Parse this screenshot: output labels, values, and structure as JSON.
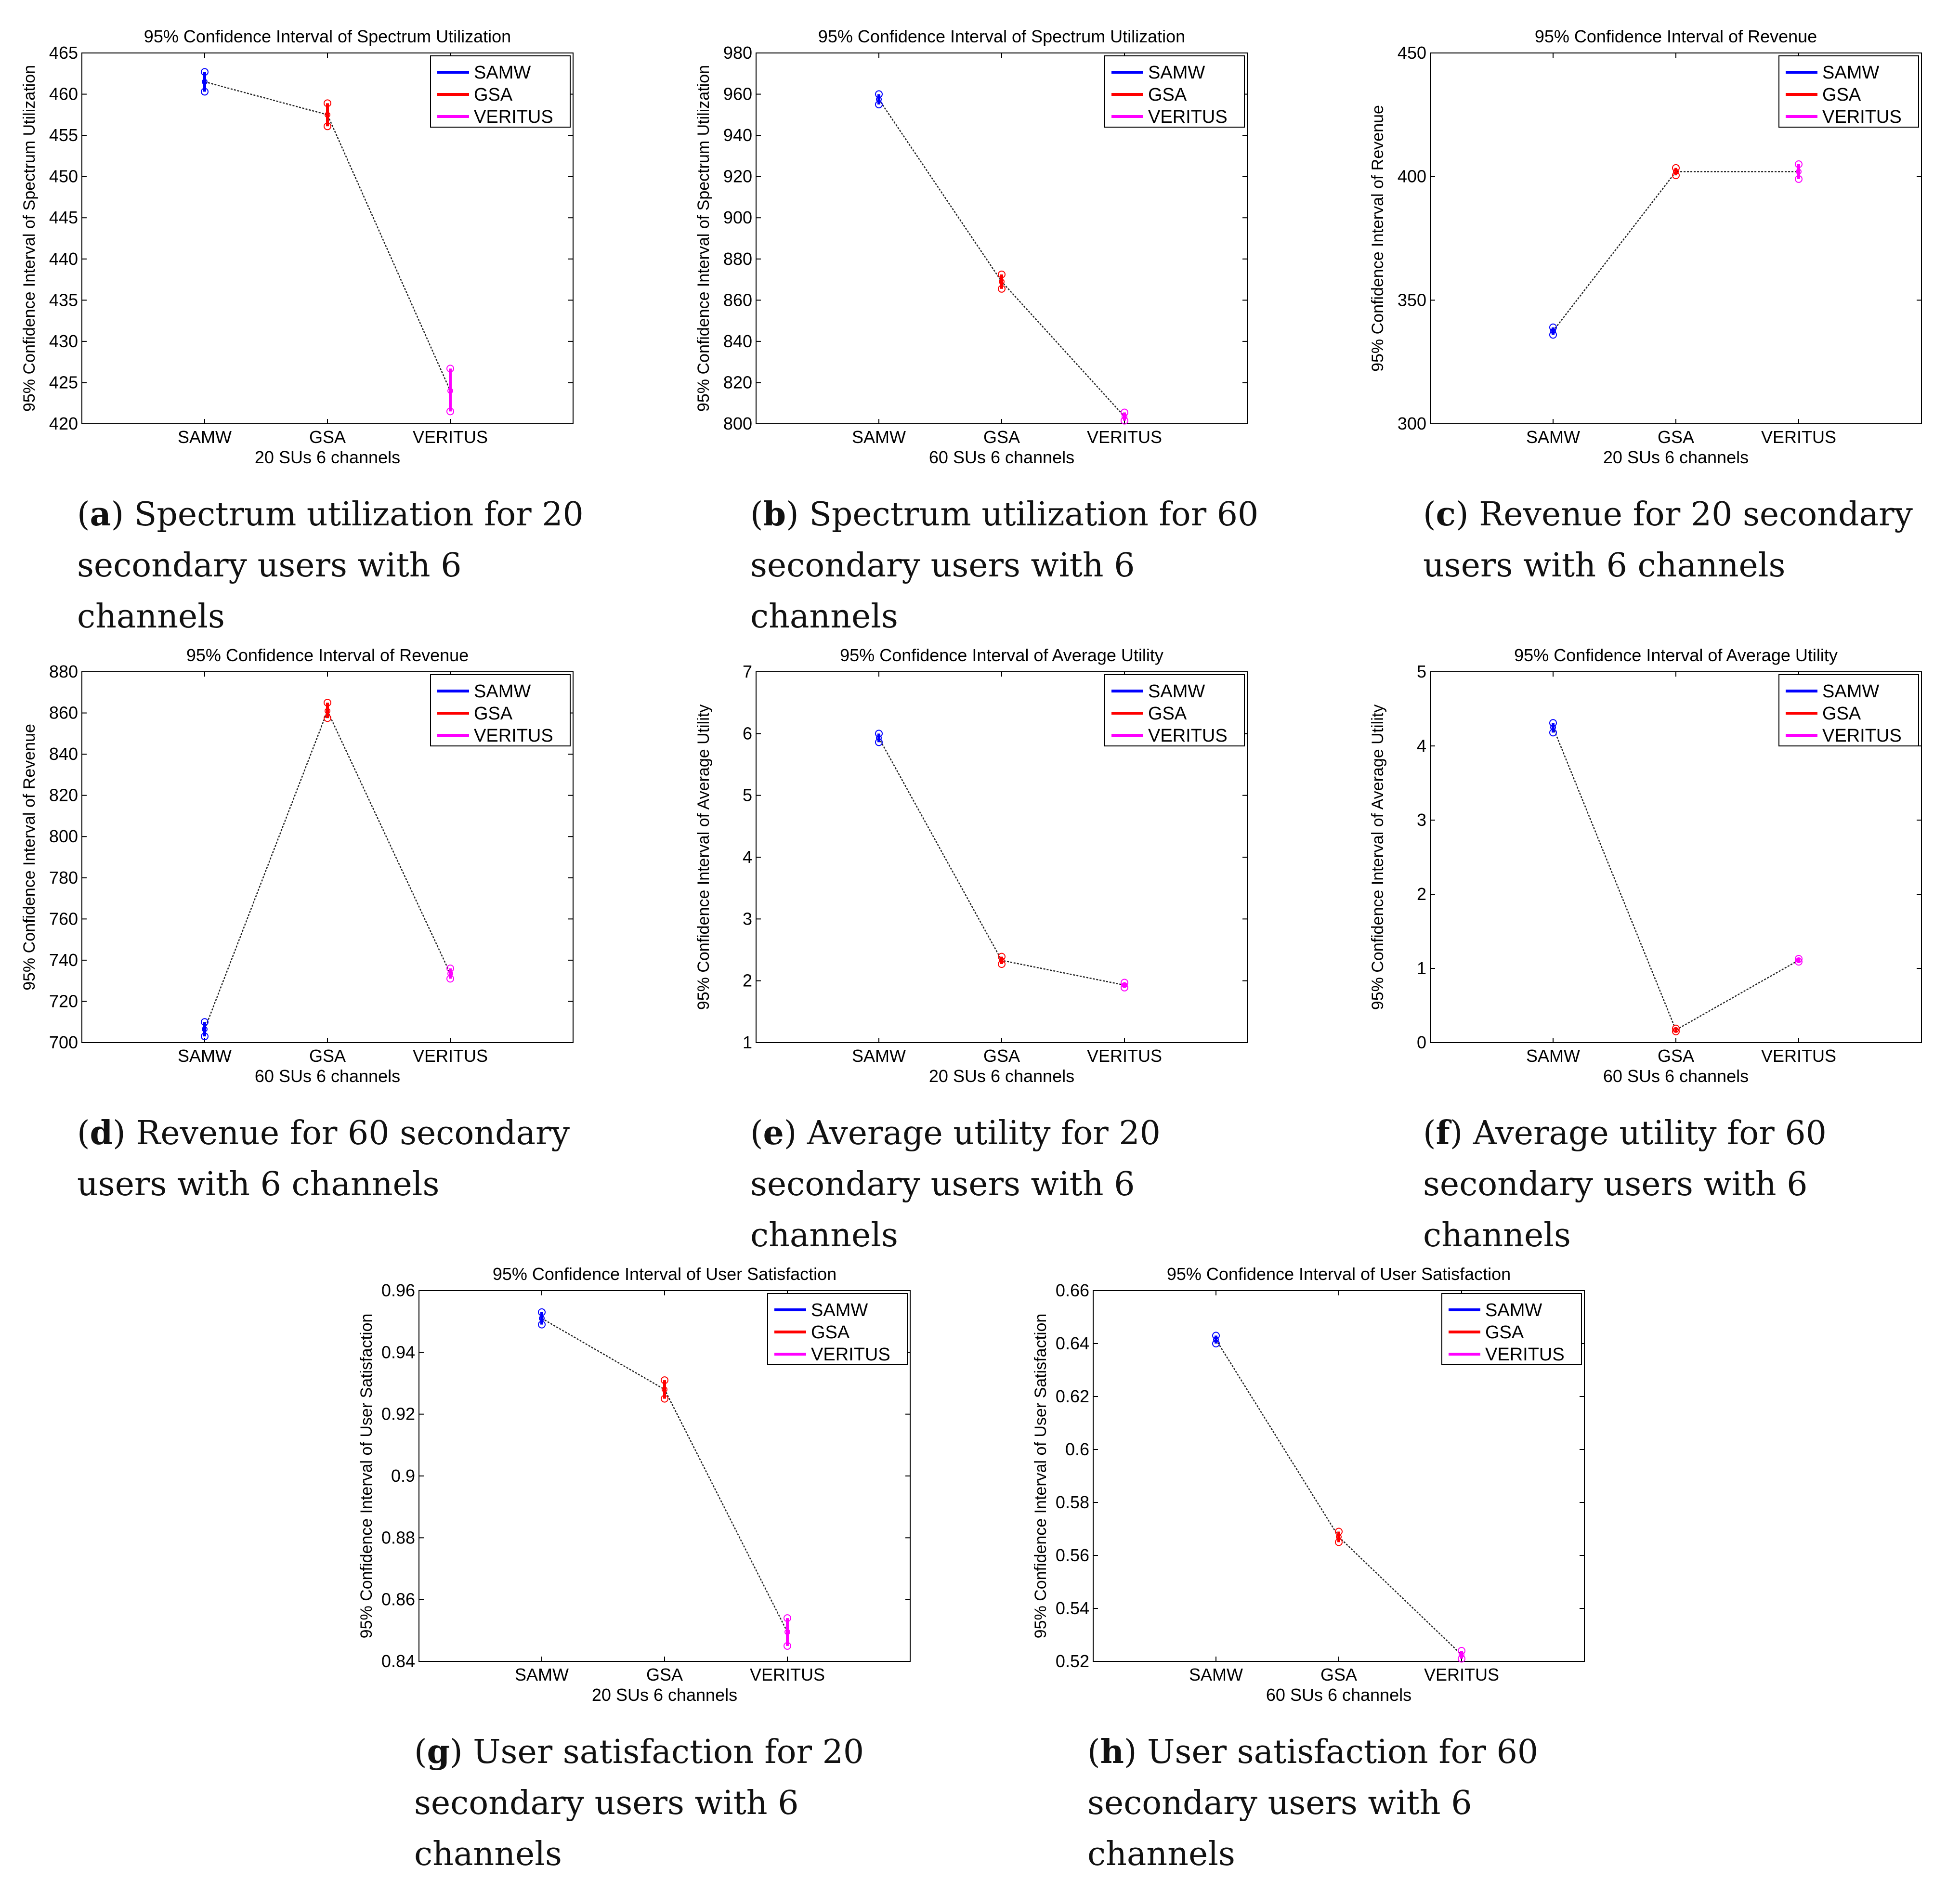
{
  "colors": {
    "SAMW": "#0000ff",
    "GSA": "#ff0000",
    "VERITUS": "#ff00ff",
    "connector": "#222222"
  },
  "chart_data": [
    {
      "type": "errorbar",
      "title": "95% Confidence Interval of Spectrum Utilization",
      "ylabel": "95% Confidence Interval of Spectrum Utilization",
      "xlabel": "20 SUs 6 channels",
      "categories": [
        "SAMW",
        "GSA",
        "VERITUS"
      ],
      "series": [
        {
          "name": "SAMW",
          "mean": 461.5,
          "lower": 460.3,
          "upper": 462.7
        },
        {
          "name": "GSA",
          "mean": 457.5,
          "lower": 456.1,
          "upper": 458.9
        },
        {
          "name": "VERITUS",
          "mean": 424.0,
          "lower": 421.5,
          "upper": 426.7
        }
      ],
      "ylim": [
        420,
        465
      ],
      "yticks": [
        "420",
        "425",
        "430",
        "435",
        "440",
        "445",
        "450",
        "455",
        "460",
        "465"
      ],
      "legend": "top-right",
      "caption_letter": "a",
      "caption_text": "Spectrum utilization for 20 secondary users with 6 channels"
    },
    {
      "type": "errorbar",
      "title": "95% Confidence Interval of Spectrum Utilization",
      "ylabel": "95% Confidence Interval of Spectrum Utilization",
      "xlabel": "60 SUs 6 channels",
      "categories": [
        "SAMW",
        "GSA",
        "VERITUS"
      ],
      "series": [
        {
          "name": "SAMW",
          "mean": 957.5,
          "lower": 955.0,
          "upper": 960.0
        },
        {
          "name": "GSA",
          "mean": 869.0,
          "lower": 865.5,
          "upper": 872.5
        },
        {
          "name": "VERITUS",
          "mean": 803.5,
          "lower": 801.5,
          "upper": 805.5
        }
      ],
      "ylim": [
        800,
        980
      ],
      "yticks": [
        "800",
        "820",
        "840",
        "860",
        "880",
        "900",
        "920",
        "940",
        "960",
        "980"
      ],
      "legend": "top-right",
      "caption_letter": "b",
      "caption_text": "Spectrum utilization for 60 secondary users with 6 channels"
    },
    {
      "type": "errorbar",
      "title": "95% Confidence Interval of Revenue",
      "ylabel": "95% Confidence Interval of Revenue",
      "xlabel": "20 SUs 6 channels",
      "categories": [
        "SAMW",
        "GSA",
        "VERITUS"
      ],
      "series": [
        {
          "name": "SAMW",
          "mean": 337.5,
          "lower": 336.0,
          "upper": 339.0
        },
        {
          "name": "GSA",
          "mean": 402.0,
          "lower": 400.5,
          "upper": 403.5
        },
        {
          "name": "VERITUS",
          "mean": 402.0,
          "lower": 399.0,
          "upper": 405.0
        }
      ],
      "ylim": [
        300,
        450
      ],
      "yticks": [
        "300",
        "350",
        "400",
        "450"
      ],
      "legend": "top-right",
      "caption_letter": "c",
      "caption_text": "Revenue for 20 secondary users with 6 channels"
    },
    {
      "type": "errorbar",
      "title": "95% Confidence Interval of Revenue",
      "ylabel": "95% Confidence Interval of Revenue",
      "xlabel": "60 SUs 6 channels",
      "categories": [
        "SAMW",
        "GSA",
        "VERITUS"
      ],
      "series": [
        {
          "name": "SAMW",
          "mean": 706.5,
          "lower": 703.0,
          "upper": 710.0
        },
        {
          "name": "GSA",
          "mean": 861.0,
          "lower": 857.5,
          "upper": 865.0
        },
        {
          "name": "VERITUS",
          "mean": 733.5,
          "lower": 731.0,
          "upper": 736.0
        }
      ],
      "ylim": [
        700,
        880
      ],
      "yticks": [
        "700",
        "720",
        "740",
        "760",
        "780",
        "800",
        "820",
        "840",
        "860",
        "880"
      ],
      "legend": "top-right",
      "caption_letter": "d",
      "caption_text": "Revenue for 60 secondary users with 6 channels"
    },
    {
      "type": "errorbar",
      "title": "95% Confidence Interval of Average Utility",
      "ylabel": "95% Confidence Interval of Average Utility",
      "xlabel": "20 SUs 6 channels",
      "categories": [
        "SAMW",
        "GSA",
        "VERITUS"
      ],
      "series": [
        {
          "name": "SAMW",
          "mean": 5.93,
          "lower": 5.86,
          "upper": 6.0
        },
        {
          "name": "GSA",
          "mean": 2.33,
          "lower": 2.27,
          "upper": 2.39
        },
        {
          "name": "VERITUS",
          "mean": 1.93,
          "lower": 1.89,
          "upper": 1.97
        }
      ],
      "ylim": [
        1,
        7
      ],
      "yticks": [
        "1",
        "2",
        "3",
        "4",
        "5",
        "6",
        "7"
      ],
      "legend": "top-right",
      "caption_letter": "e",
      "caption_text": "Average utility for 20 secondary users with 6 channels"
    },
    {
      "type": "errorbar",
      "title": "95% Confidence Interval of Average Utility",
      "ylabel": "95% Confidence Interval of Average Utility",
      "xlabel": "60 SUs 6 channels",
      "categories": [
        "SAMW",
        "GSA",
        "VERITUS"
      ],
      "series": [
        {
          "name": "SAMW",
          "mean": 4.25,
          "lower": 4.18,
          "upper": 4.31
        },
        {
          "name": "GSA",
          "mean": 0.17,
          "lower": 0.15,
          "upper": 0.19
        },
        {
          "name": "VERITUS",
          "mean": 1.11,
          "lower": 1.09,
          "upper": 1.13
        }
      ],
      "ylim": [
        0,
        5
      ],
      "yticks": [
        "0",
        "1",
        "2",
        "3",
        "4",
        "5"
      ],
      "legend": "top-right",
      "caption_letter": "f",
      "caption_text": "Average utility for 60 secondary users with 6 channels"
    },
    {
      "type": "errorbar",
      "title": "95% Confidence Interval of User Satisfaction",
      "ylabel": "95% Confidence Interval of User Satisfaction",
      "xlabel": "20 SUs 6 channels",
      "categories": [
        "SAMW",
        "GSA",
        "VERITUS"
      ],
      "series": [
        {
          "name": "SAMW",
          "mean": 0.951,
          "lower": 0.949,
          "upper": 0.953
        },
        {
          "name": "GSA",
          "mean": 0.928,
          "lower": 0.925,
          "upper": 0.931
        },
        {
          "name": "VERITUS",
          "mean": 0.8495,
          "lower": 0.845,
          "upper": 0.854
        }
      ],
      "ylim": [
        0.84,
        0.96
      ],
      "yticks": [
        "0.84",
        "0.86",
        "0.88",
        "0.9",
        "0.92",
        "0.94",
        "0.96"
      ],
      "legend": "top-right",
      "caption_letter": "g",
      "caption_text": "User satisfaction for 20 secondary users with 6 channels"
    },
    {
      "type": "errorbar",
      "title": "95% Confidence Interval of User Satisfaction",
      "ylabel": "95% Confidence Interval of User Satisfaction",
      "xlabel": "60 SUs 6 channels",
      "categories": [
        "SAMW",
        "GSA",
        "VERITUS"
      ],
      "series": [
        {
          "name": "SAMW",
          "mean": 0.6415,
          "lower": 0.64,
          "upper": 0.643
        },
        {
          "name": "GSA",
          "mean": 0.567,
          "lower": 0.565,
          "upper": 0.569
        },
        {
          "name": "VERITUS",
          "mean": 0.5225,
          "lower": 0.521,
          "upper": 0.524
        }
      ],
      "ylim": [
        0.52,
        0.66
      ],
      "yticks": [
        "0.52",
        "0.54",
        "0.56",
        "0.58",
        "0.6",
        "0.62",
        "0.64",
        "0.66"
      ],
      "legend": "top-right",
      "caption_letter": "h",
      "caption_text": "User satisfaction for 60 secondary users with 6 channels"
    }
  ]
}
